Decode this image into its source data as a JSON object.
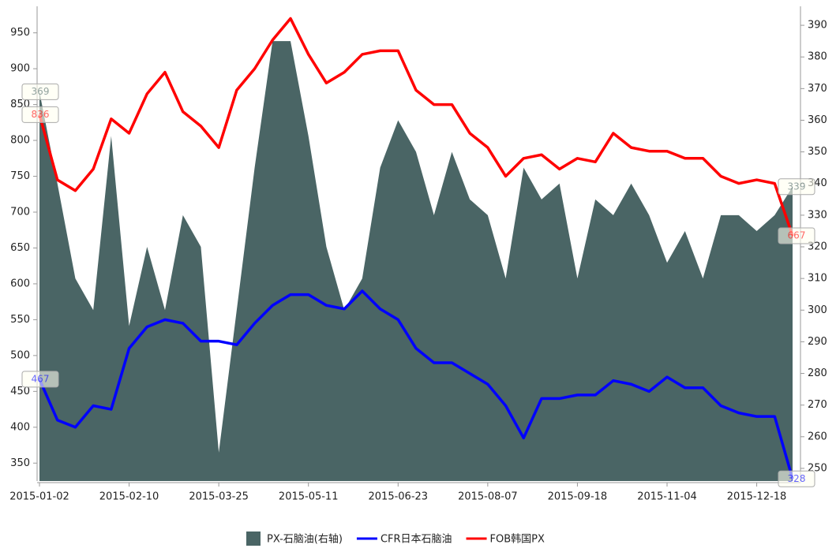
{
  "chart_data": {
    "type": "line",
    "categories": [
      "2015-01-02",
      null,
      null,
      null,
      null,
      "2015-02-10",
      null,
      null,
      null,
      null,
      "2015-03-25",
      null,
      null,
      null,
      null,
      "2015-05-11",
      null,
      null,
      null,
      null,
      "2015-06-23",
      null,
      null,
      null,
      null,
      "2015-08-07",
      null,
      null,
      null,
      null,
      "2015-09-18",
      null,
      null,
      null,
      null,
      "2015-11-04",
      null,
      null,
      null,
      null,
      "2015-12-18",
      null,
      null
    ],
    "ylim": [
      325,
      987
    ],
    "yticks": [
      350,
      400,
      450,
      500,
      550,
      600,
      650,
      700,
      750,
      800,
      850,
      900,
      950
    ],
    "y2lim": [
      246,
      396
    ],
    "y2ticks": [
      250,
      260,
      270,
      280,
      290,
      300,
      310,
      320,
      330,
      340,
      350,
      360,
      370,
      380,
      390
    ],
    "series": [
      {
        "name": "PX-石脑油(右轴)",
        "color": "#4a6565",
        "type": "area",
        "axis": "y2",
        "values": [
          369,
          340,
          310,
          300,
          355,
          295,
          320,
          300,
          330,
          320,
          255,
          300,
          345,
          385,
          385,
          355,
          320,
          300,
          310,
          345,
          360,
          350,
          330,
          350,
          335,
          330,
          310,
          345,
          335,
          340,
          310,
          335,
          330,
          340,
          330,
          315,
          325,
          310,
          330,
          330,
          325,
          330,
          339
        ]
      },
      {
        "name": "CFR日本石脑油",
        "color": "#0000ff",
        "type": "line",
        "values": [
          467,
          410,
          400,
          430,
          425,
          510,
          540,
          550,
          545,
          520,
          520,
          515,
          545,
          570,
          585,
          585,
          570,
          565,
          590,
          565,
          550,
          510,
          490,
          490,
          475,
          460,
          430,
          385,
          440,
          440,
          445,
          445,
          465,
          460,
          450,
          470,
          455,
          455,
          430,
          420,
          415,
          415,
          328
        ]
      },
      {
        "name": "FOB韩国PX",
        "color": "#ff0000",
        "type": "line",
        "values": [
          836,
          745,
          730,
          760,
          830,
          810,
          865,
          895,
          840,
          820,
          790,
          870,
          900,
          940,
          970,
          920,
          880,
          895,
          920,
          925,
          925,
          870,
          850,
          850,
          810,
          790,
          750,
          775,
          780,
          760,
          775,
          770,
          810,
          790,
          785,
          785,
          775,
          775,
          750,
          740,
          745,
          740,
          667
        ]
      }
    ]
  }
}
